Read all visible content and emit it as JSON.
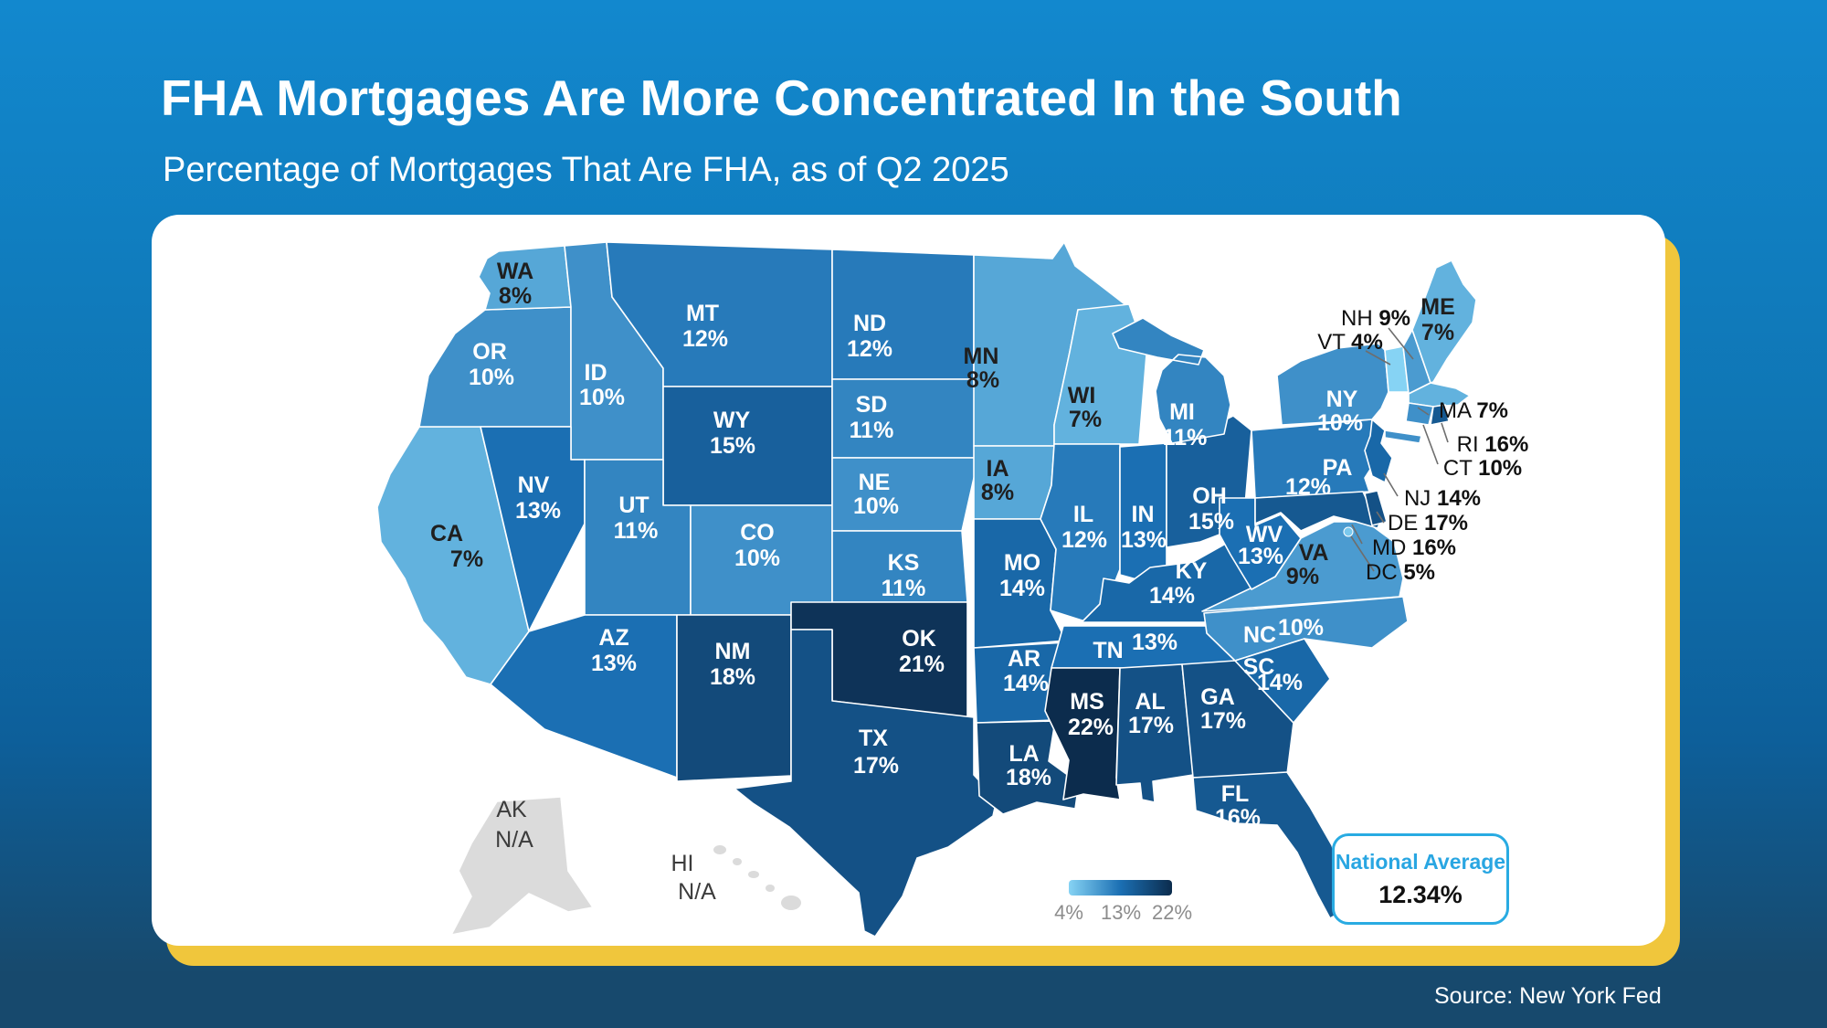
{
  "page": {
    "title": "FHA Mortgages Are More Concentrated In the South",
    "subtitle": "Percentage of Mortgages That Are FHA, as of Q2 2025"
  },
  "footer": {
    "source": "Source: New York Fed"
  },
  "legend": {
    "ticks": [
      "4%",
      "13%",
      "22%"
    ]
  },
  "national_average": {
    "label": "National Average",
    "value": "12.34%"
  },
  "colors": {
    "accent": "#29abe2",
    "card_shadow": "#f0c63c",
    "na_fill": "#dbdbdb",
    "dark_label": "#1f1f1f",
    "light_label": "#ffffff",
    "callout_label": "#111111",
    "na_label": "#3c3c3c",
    "legend_tick": "#8c8c8c",
    "leader_line": "#6e6e6e",
    "background_top": "#1288ce",
    "background_bottom": "#174a6e",
    "scale": [
      {
        "value": 4,
        "color": "#86d3f4"
      },
      {
        "value": 13,
        "color": "#1b6fb3"
      },
      {
        "value": 22,
        "color": "#0c2c4d"
      }
    ]
  },
  "chart_data": {
    "type": "choropleth-map",
    "geography": "United States",
    "title": "FHA Mortgages Are More Concentrated In the South",
    "subtitle": "Percentage of Mortgages That Are FHA, as of Q2 2025",
    "unit": "percent",
    "legend_range": [
      4,
      22
    ],
    "legend_tick_values": [
      4,
      13,
      22
    ],
    "national_average": 12.34,
    "source": "New York Fed",
    "states": [
      {
        "code": "CA",
        "value": 7,
        "label": "7%"
      },
      {
        "code": "OR",
        "value": 10,
        "label": "10%"
      },
      {
        "code": "WA",
        "value": 8,
        "label": "8%"
      },
      {
        "code": "ID",
        "value": 10,
        "label": "10%"
      },
      {
        "code": "MT",
        "value": 12,
        "label": "12%"
      },
      {
        "code": "WY",
        "value": 15,
        "label": "15%"
      },
      {
        "code": "NV",
        "value": 13,
        "label": "13%"
      },
      {
        "code": "UT",
        "value": 11,
        "label": "11%"
      },
      {
        "code": "CO",
        "value": 10,
        "label": "10%"
      },
      {
        "code": "AZ",
        "value": 13,
        "label": "13%"
      },
      {
        "code": "NM",
        "value": 18,
        "label": "18%"
      },
      {
        "code": "ND",
        "value": 12,
        "label": "12%"
      },
      {
        "code": "SD",
        "value": 11,
        "label": "11%"
      },
      {
        "code": "NE",
        "value": 10,
        "label": "10%"
      },
      {
        "code": "KS",
        "value": 11,
        "label": "11%"
      },
      {
        "code": "OK",
        "value": 21,
        "label": "21%"
      },
      {
        "code": "TX",
        "value": 17,
        "label": "17%"
      },
      {
        "code": "MN",
        "value": 8,
        "label": "8%"
      },
      {
        "code": "IA",
        "value": 8,
        "label": "8%"
      },
      {
        "code": "MO",
        "value": 14,
        "label": "14%"
      },
      {
        "code": "AR",
        "value": 14,
        "label": "14%"
      },
      {
        "code": "LA",
        "value": 18,
        "label": "18%"
      },
      {
        "code": "WI",
        "value": 7,
        "label": "7%"
      },
      {
        "code": "IL",
        "value": 12,
        "label": "12%"
      },
      {
        "code": "IN",
        "value": 13,
        "label": "13%"
      },
      {
        "code": "OH",
        "value": 15,
        "label": "15%"
      },
      {
        "code": "MI",
        "value": 11,
        "label": "11%"
      },
      {
        "code": "KY",
        "value": 14,
        "label": "14%"
      },
      {
        "code": "TN",
        "value": 13,
        "label": "13%"
      },
      {
        "code": "MS",
        "value": 22,
        "label": "22%"
      },
      {
        "code": "AL",
        "value": 17,
        "label": "17%"
      },
      {
        "code": "GA",
        "value": 17,
        "label": "17%"
      },
      {
        "code": "FL",
        "value": 16,
        "label": "16%"
      },
      {
        "code": "NC",
        "value": 10,
        "label": "10%"
      },
      {
        "code": "SC",
        "value": 14,
        "label": "14%"
      },
      {
        "code": "VA",
        "value": 9,
        "label": "9%"
      },
      {
        "code": "WV",
        "value": 13,
        "label": "13%"
      },
      {
        "code": "PA",
        "value": 12,
        "label": "12%"
      },
      {
        "code": "NJ",
        "value": 14,
        "label": "14%"
      },
      {
        "code": "NY",
        "value": 10,
        "label": "10%"
      },
      {
        "code": "VT",
        "value": 4,
        "label": "4%"
      },
      {
        "code": "NH",
        "value": 9,
        "label": "9%"
      },
      {
        "code": "ME",
        "value": 7,
        "label": "7%"
      },
      {
        "code": "MA",
        "value": 7,
        "label": "7%"
      },
      {
        "code": "CT",
        "value": 10,
        "label": "10%"
      },
      {
        "code": "RI",
        "value": 16,
        "label": "16%"
      },
      {
        "code": "MD",
        "value": 16,
        "label": "16%"
      },
      {
        "code": "DE",
        "value": 17,
        "label": "17%"
      },
      {
        "code": "DC",
        "value": 5,
        "label": "5%"
      },
      {
        "code": "AK",
        "value": null,
        "label": "N/A"
      },
      {
        "code": "HI",
        "value": null,
        "label": "N/A"
      }
    ]
  }
}
